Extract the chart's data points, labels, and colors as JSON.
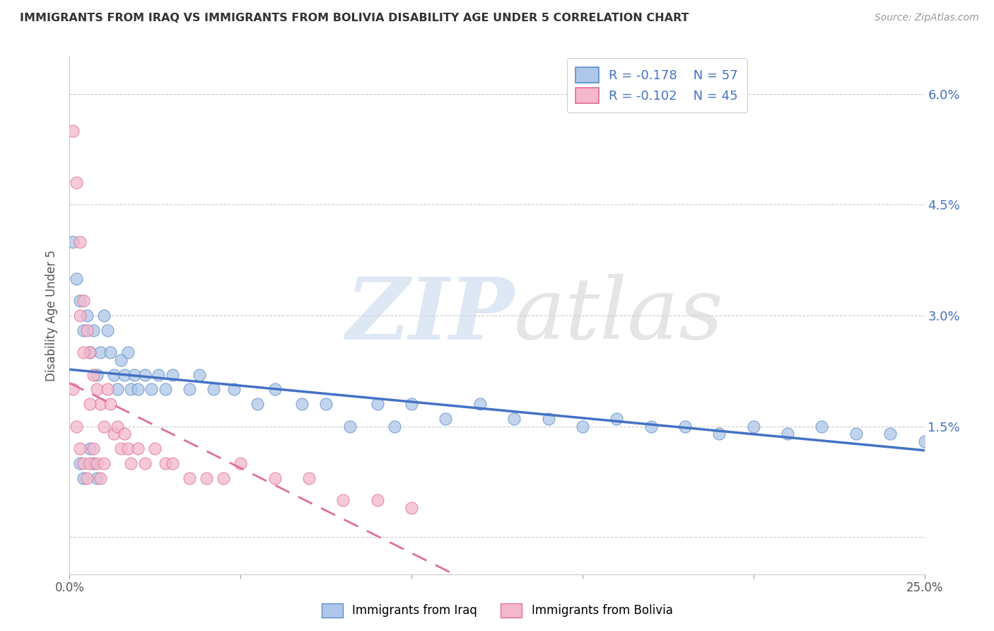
{
  "title": "IMMIGRANTS FROM IRAQ VS IMMIGRANTS FROM BOLIVIA DISABILITY AGE UNDER 5 CORRELATION CHART",
  "source": "Source: ZipAtlas.com",
  "ylabel": "Disability Age Under 5",
  "xmin": 0.0,
  "xmax": 0.25,
  "ymin": -0.005,
  "ymax": 0.065,
  "yticks": [
    0.0,
    0.015,
    0.03,
    0.045,
    0.06
  ],
  "ytick_labels": [
    "",
    "1.5%",
    "3.0%",
    "4.5%",
    "6.0%"
  ],
  "xtick_positions": [
    0.0,
    0.05,
    0.1,
    0.15,
    0.2,
    0.25
  ],
  "xtick_labels": [
    "0.0%",
    "",
    "",
    "",
    "",
    "25.0%"
  ],
  "legend_iraq_r": "-0.178",
  "legend_iraq_n": "57",
  "legend_bolivia_r": "-0.102",
  "legend_bolivia_n": "45",
  "iraq_color": "#aec6e8",
  "iraq_edge_color": "#5b8dc8",
  "bolivia_color": "#f4b8cc",
  "bolivia_edge_color": "#e07090",
  "iraq_line_color": "#4472c4",
  "bolivia_line_color": "#e07090",
  "iraq_x": [
    0.001,
    0.002,
    0.003,
    0.004,
    0.005,
    0.006,
    0.007,
    0.008,
    0.009,
    0.01,
    0.011,
    0.012,
    0.013,
    0.014,
    0.015,
    0.016,
    0.017,
    0.018,
    0.019,
    0.02,
    0.022,
    0.024,
    0.026,
    0.028,
    0.03,
    0.035,
    0.038,
    0.042,
    0.048,
    0.055,
    0.06,
    0.068,
    0.075,
    0.082,
    0.09,
    0.095,
    0.1,
    0.11,
    0.12,
    0.13,
    0.14,
    0.15,
    0.16,
    0.17,
    0.18,
    0.19,
    0.2,
    0.21,
    0.22,
    0.23,
    0.24,
    0.25,
    0.003,
    0.004,
    0.006,
    0.007,
    0.008
  ],
  "iraq_y": [
    0.04,
    0.035,
    0.032,
    0.028,
    0.03,
    0.025,
    0.028,
    0.022,
    0.025,
    0.03,
    0.028,
    0.025,
    0.022,
    0.02,
    0.024,
    0.022,
    0.025,
    0.02,
    0.022,
    0.02,
    0.022,
    0.02,
    0.022,
    0.02,
    0.022,
    0.02,
    0.022,
    0.02,
    0.02,
    0.018,
    0.02,
    0.018,
    0.018,
    0.015,
    0.018,
    0.015,
    0.018,
    0.016,
    0.018,
    0.016,
    0.016,
    0.015,
    0.016,
    0.015,
    0.015,
    0.014,
    0.015,
    0.014,
    0.015,
    0.014,
    0.014,
    0.013,
    0.01,
    0.008,
    0.012,
    0.01,
    0.008
  ],
  "bolivia_x": [
    0.001,
    0.001,
    0.002,
    0.002,
    0.003,
    0.003,
    0.004,
    0.004,
    0.005,
    0.005,
    0.006,
    0.006,
    0.007,
    0.007,
    0.008,
    0.008,
    0.009,
    0.009,
    0.01,
    0.01,
    0.011,
    0.012,
    0.013,
    0.014,
    0.015,
    0.016,
    0.017,
    0.018,
    0.02,
    0.022,
    0.025,
    0.028,
    0.03,
    0.035,
    0.04,
    0.045,
    0.05,
    0.06,
    0.07,
    0.08,
    0.09,
    0.1,
    0.003,
    0.004,
    0.006
  ],
  "bolivia_y": [
    0.055,
    0.02,
    0.048,
    0.015,
    0.04,
    0.012,
    0.032,
    0.01,
    0.028,
    0.008,
    0.025,
    0.01,
    0.022,
    0.012,
    0.02,
    0.01,
    0.018,
    0.008,
    0.015,
    0.01,
    0.02,
    0.018,
    0.014,
    0.015,
    0.012,
    0.014,
    0.012,
    0.01,
    0.012,
    0.01,
    0.012,
    0.01,
    0.01,
    0.008,
    0.008,
    0.008,
    0.01,
    0.008,
    0.008,
    0.005,
    0.005,
    0.004,
    0.03,
    0.025,
    0.018
  ]
}
